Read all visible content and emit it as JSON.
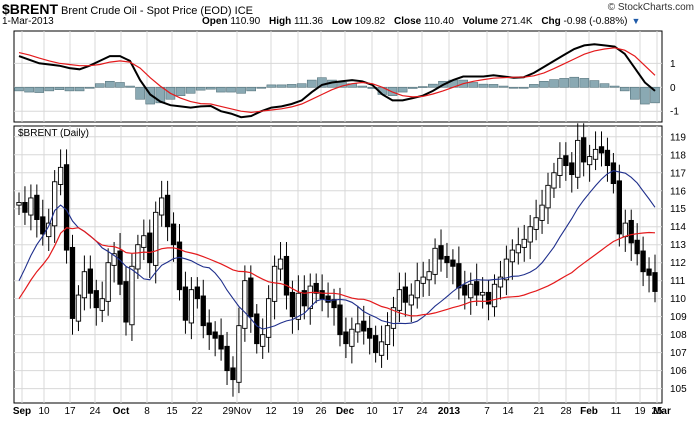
{
  "header": {
    "symbol": "$BRENT",
    "name": "Brent Crude Oil - Spot Price (EOD)",
    "exchange": "ICE",
    "date": "1-Mar-2013",
    "brand": "© StockCharts.com",
    "open_label": "Open",
    "open": "110.90",
    "high_label": "High",
    "high": "111.36",
    "low_label": "Low",
    "low": "109.82",
    "close_label": "Close",
    "close": "110.40",
    "volume_label": "Volume",
    "volume": "271.4K",
    "chg_label": "Chg",
    "chg": "-0.98 (-0.88%)"
  },
  "chart_data": [
    {
      "type": "line",
      "panel": "indicator",
      "yticks": [
        1,
        0,
        -1
      ],
      "ylim": [
        -1.45,
        2.35
      ],
      "series": [
        {
          "values": [
            1.3,
            1.15,
            1.0,
            0.95,
            0.9,
            0.8,
            0.75,
            0.9,
            1.1,
            1.3,
            1.3,
            1.1,
            0.3,
            -0.3,
            -0.6,
            -0.75,
            -0.8,
            -0.85,
            -0.8,
            -0.78,
            -1.0,
            -1.1,
            -1.25,
            -1.2,
            -1.0,
            -0.85,
            -0.8,
            -0.7,
            -0.55,
            -0.2,
            0.1,
            0.2,
            0.25,
            0.3,
            0.25,
            0.1,
            -0.3,
            -0.55,
            -0.55,
            -0.45,
            -0.35,
            -0.15,
            0.1,
            0.3,
            0.45,
            0.45,
            0.45,
            0.5,
            0.45,
            0.4,
            0.42,
            0.6,
            0.85,
            1.1,
            1.35,
            1.6,
            1.75,
            1.8,
            1.75,
            1.7,
            1.4,
            0.8,
            0.2,
            -0.15
          ]
        },
        {
          "values": [
            1.45,
            1.35,
            1.22,
            1.1,
            1.0,
            0.95,
            0.9,
            0.9,
            0.95,
            1.05,
            1.1,
            1.05,
            0.8,
            0.4,
            0.05,
            -0.25,
            -0.45,
            -0.6,
            -0.68,
            -0.7,
            -0.8,
            -0.9,
            -1.0,
            -1.05,
            -1.0,
            -0.95,
            -0.9,
            -0.82,
            -0.7,
            -0.5,
            -0.3,
            -0.1,
            0.05,
            0.15,
            0.2,
            0.15,
            0.0,
            -0.2,
            -0.35,
            -0.4,
            -0.38,
            -0.28,
            -0.15,
            0.0,
            0.15,
            0.25,
            0.32,
            0.38,
            0.4,
            0.42,
            0.42,
            0.48,
            0.6,
            0.78,
            0.98,
            1.18,
            1.38,
            1.52,
            1.6,
            1.65,
            1.55,
            1.3,
            0.9,
            0.5
          ]
        }
      ],
      "histogram": [
        -0.15,
        -0.2,
        -0.22,
        -0.15,
        -0.1,
        -0.15,
        -0.15,
        0.0,
        0.15,
        0.25,
        0.2,
        0.05,
        -0.5,
        -0.7,
        -0.65,
        -0.5,
        -0.35,
        -0.25,
        -0.12,
        -0.08,
        -0.2,
        -0.2,
        -0.25,
        -0.15,
        0.0,
        0.1,
        0.1,
        0.12,
        0.15,
        0.3,
        0.4,
        0.3,
        0.2,
        0.15,
        0.05,
        -0.05,
        -0.3,
        -0.35,
        -0.2,
        -0.05,
        0.03,
        0.13,
        0.25,
        0.3,
        0.3,
        0.2,
        0.13,
        0.12,
        0.05,
        -0.02,
        0.0,
        0.12,
        0.25,
        0.32,
        0.37,
        0.42,
        0.37,
        0.28,
        0.15,
        0.05,
        -0.15,
        -0.5,
        -0.7,
        -0.65
      ]
    },
    {
      "type": "candlestick",
      "title": "$BRENT (Daily)",
      "yticks": [
        119,
        118,
        117,
        116,
        115,
        114,
        113,
        112,
        111,
        110,
        109,
        108,
        107,
        106,
        105
      ],
      "ylim": [
        104.2,
        119.6
      ],
      "xticks": [
        "Sep",
        "10",
        "17",
        "24",
        "Oct",
        "8",
        "15",
        "22",
        "29Nov",
        "12",
        "19",
        "26",
        "Dec",
        "10",
        "17",
        "24",
        "2013",
        "7",
        "14",
        "21",
        "28",
        "Feb",
        "11",
        "19",
        "25",
        "Mar"
      ],
      "closes": [
        115.2,
        114.8,
        115.6,
        114.4,
        113.6,
        114.2,
        116.5,
        117.3,
        112.7,
        108.9,
        110.2,
        111.5,
        110.3,
        109.5,
        110.0,
        112.0,
        112.5,
        110.8,
        108.7,
        111.8,
        113.0,
        113.5,
        112.0,
        114.8,
        115.6,
        114.0,
        113.0,
        110.5,
        108.8,
        110.5,
        110.0,
        108.5,
        108.0,
        107.8,
        107.2,
        106.0,
        105.5,
        108.5,
        111.0,
        109.0,
        107.5,
        108.0,
        110.0,
        111.8,
        112.2,
        110.2,
        109.0,
        110.3,
        109.6,
        110.7,
        110.3,
        110.0,
        109.8,
        109.5,
        108.0,
        107.5,
        108.3,
        108.6,
        108.2,
        107.8,
        107.0,
        107.6,
        108.5,
        109.5,
        110.5,
        109.8,
        110.2,
        111.0,
        111.2,
        111.5,
        112.8,
        112.2,
        112.0,
        111.8,
        110.6,
        110.2,
        110.8,
        110.2,
        110.2,
        109.7,
        110.8,
        111.2,
        112.2,
        112.7,
        113.0,
        113.3,
        114.0,
        114.5,
        115.2,
        116.3,
        117.0,
        117.8,
        117.4,
        116.9,
        118.8,
        117.6,
        117.9,
        118.3,
        118.1,
        117.4,
        116.4,
        113.6,
        114.2,
        113.1,
        112.5,
        111.5,
        111.3,
        110.4
      ]
    }
  ]
}
